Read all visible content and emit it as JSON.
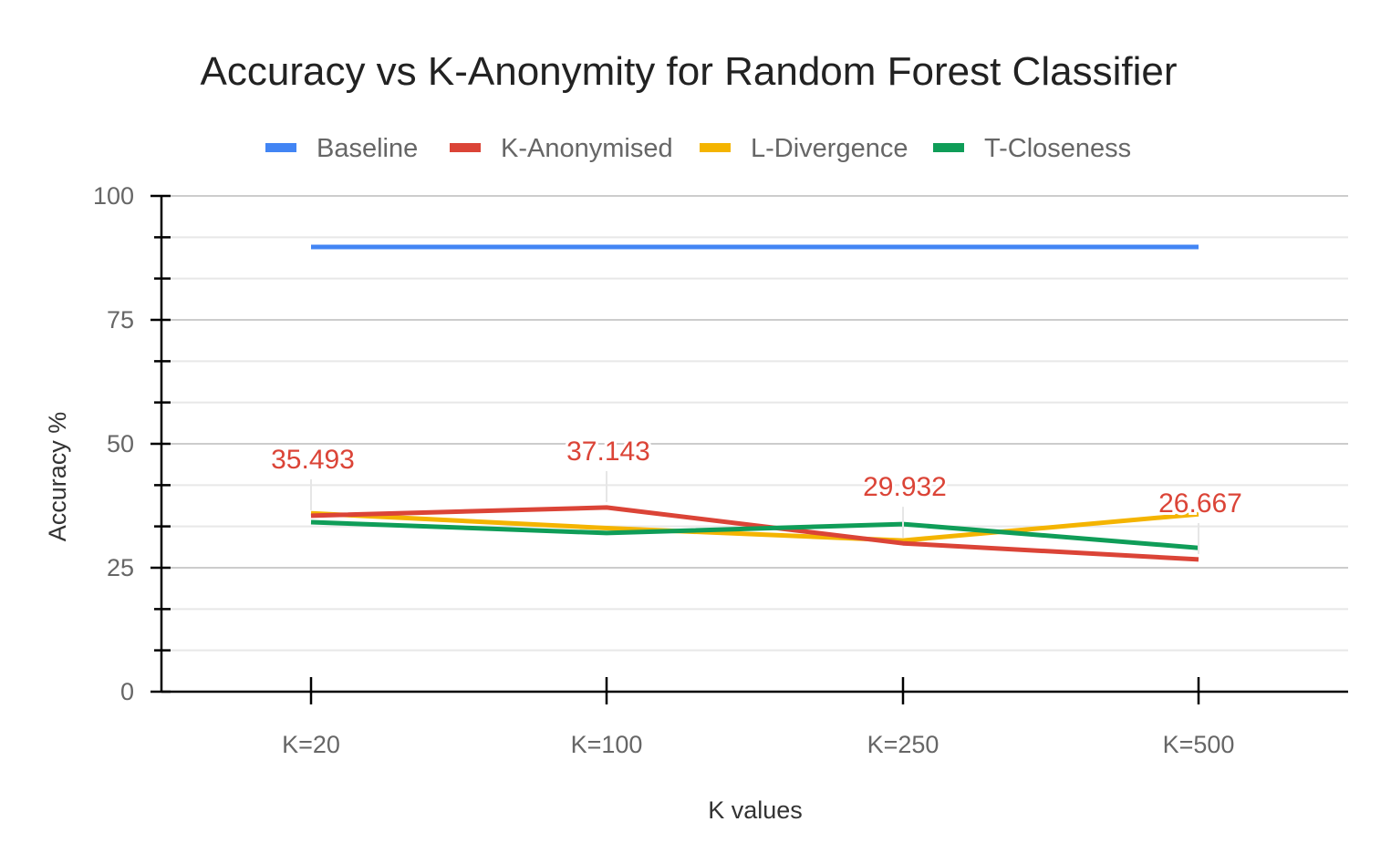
{
  "chart_data": {
    "type": "line",
    "title": "Accuracy vs K-Anonymity for Random Forest Classifier",
    "xlabel": "K values",
    "ylabel": "Accuracy %",
    "categories": [
      "K=20",
      "K=100",
      "K=250",
      "K=500"
    ],
    "ylim": [
      0,
      100
    ],
    "yticks": [
      0,
      25,
      50,
      75,
      100
    ],
    "grid": true,
    "legend": "top",
    "series": [
      {
        "name": "Baseline",
        "color": "#4285F4",
        "values": [
          89.7,
          89.7,
          89.7,
          89.7
        ]
      },
      {
        "name": "K-Anonymised",
        "color": "#DB4437",
        "values": [
          35.493,
          37.143,
          29.932,
          26.667
        ],
        "labels": [
          "35.493",
          "37.143",
          "29.932",
          "26.667"
        ]
      },
      {
        "name": "L-Divergence",
        "color": "#F4B400",
        "values": [
          36.0,
          33.0,
          30.5,
          35.8
        ]
      },
      {
        "name": "T-Closeness",
        "color": "#0F9D58",
        "values": [
          34.2,
          32.0,
          33.8,
          29.0
        ]
      }
    ]
  }
}
